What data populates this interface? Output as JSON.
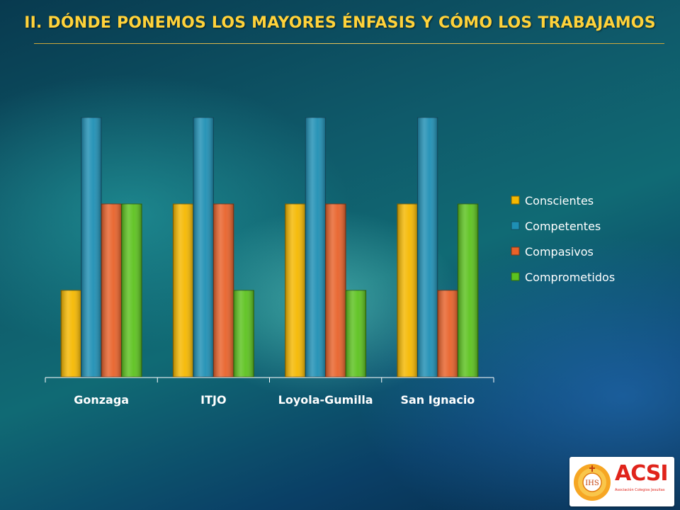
{
  "slide": {
    "title": "II. DÓNDE PONEMOS LOS MAYORES ÉNFASIS Y CÓMO LOS TRABAJAMOS"
  },
  "logo": {
    "text": "ACSI",
    "subtext": "Asociación Colegios Jesuitas",
    "emblem_text": "IHS"
  },
  "chart_data": {
    "type": "bar",
    "categories": [
      "Gonzaga",
      "ITJO",
      "Loyola-Gumilla",
      "San Ignacio"
    ],
    "series": [
      {
        "name": "Conscientes",
        "color": "#f5b800",
        "values": [
          1,
          2,
          2,
          2
        ]
      },
      {
        "name": "Competentes",
        "color": "#1e8fb4",
        "values": [
          3,
          3,
          3,
          3
        ]
      },
      {
        "name": "Compasivos",
        "color": "#e8622a",
        "values": [
          2,
          2,
          2,
          1
        ]
      },
      {
        "name": "Comprometidos",
        "color": "#5cc21e",
        "values": [
          2,
          1,
          1,
          2
        ]
      }
    ],
    "ylim": [
      0,
      3
    ],
    "grid": false,
    "legend": "right",
    "title": "",
    "xlabel": "",
    "ylabel": ""
  }
}
